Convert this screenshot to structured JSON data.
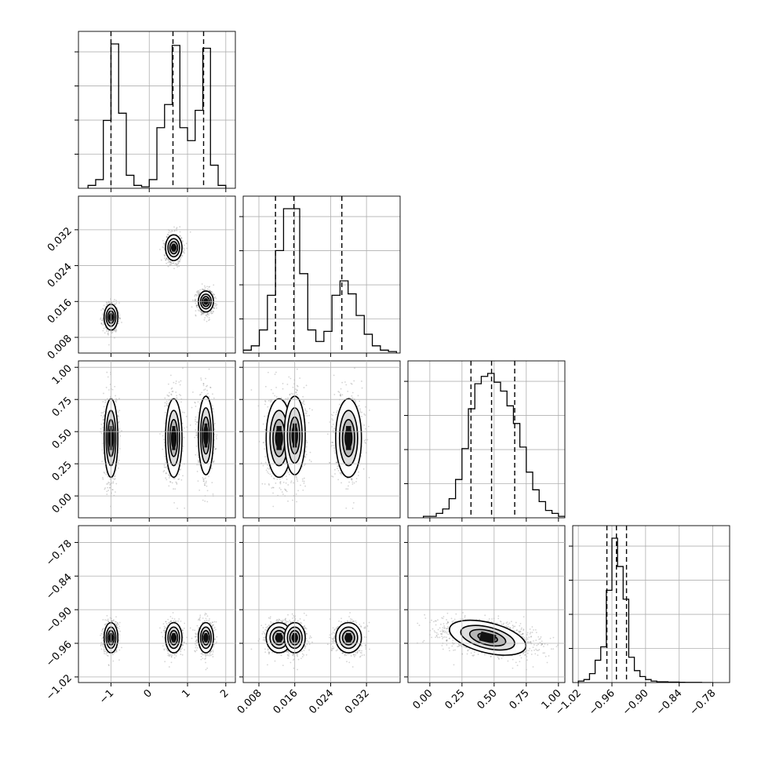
{
  "chart_data": {
    "type": "corner",
    "grid": true,
    "colors": {
      "line": "#000000",
      "grid": "#b0b0b0",
      "scatter": "#555555",
      "background": "#ffffff"
    },
    "parameters": [
      {
        "range": [
          -1.85,
          2.25
        ],
        "xticks": [
          -1,
          0,
          1,
          2
        ],
        "xtick_labels": [
          "−1",
          "0",
          "1",
          "2"
        ],
        "yticks": [],
        "ytick_labels": [],
        "quantiles": [
          -1.0,
          0.62,
          1.42
        ],
        "hist_edges": [
          -1.6,
          -1.4,
          -1.2,
          -1.0,
          -0.8,
          -0.6,
          -0.4,
          -0.2,
          0.0,
          0.2,
          0.4,
          0.6,
          0.8,
          1.0,
          1.2,
          1.4,
          1.6,
          1.8,
          2.0
        ],
        "hist_counts": [
          2,
          6,
          47,
          100,
          52,
          9,
          2,
          1,
          6,
          42,
          58,
          99,
          42,
          33,
          54,
          97,
          16,
          2
        ]
      },
      {
        "range": [
          0.0045,
          0.0395
        ],
        "xticks": [
          0.008,
          0.016,
          0.024,
          0.032
        ],
        "xtick_labels": [
          "0.008",
          "0.016",
          "0.024",
          "0.032"
        ],
        "yticks": [
          0.008,
          0.016,
          0.024,
          0.032
        ],
        "ytick_labels": [
          "0.008",
          "0.016",
          "0.024",
          "0.032"
        ],
        "quantiles": [
          0.0117,
          0.0158,
          0.0265
        ],
        "hist_edges": [
          0.0045,
          0.0063,
          0.0081,
          0.0099,
          0.0117,
          0.0135,
          0.0153,
          0.0171,
          0.0189,
          0.0207,
          0.0225,
          0.0243,
          0.0261,
          0.0279,
          0.0297,
          0.0315,
          0.0333,
          0.0351,
          0.0369,
          0.0387
        ],
        "hist_counts": [
          2,
          5,
          16,
          40,
          71,
          100,
          100,
          55,
          16,
          8,
          15,
          40,
          50,
          41,
          26,
          13,
          5,
          2,
          1
        ]
      },
      {
        "range": [
          -0.17,
          1.05
        ],
        "xticks": [
          0.0,
          0.25,
          0.5,
          0.75,
          1.0
        ],
        "xtick_labels": [
          "0.00",
          "0.25",
          "0.50",
          "0.75",
          "1.00"
        ],
        "yticks": [
          0.0,
          0.25,
          0.5,
          0.75,
          1.0
        ],
        "ytick_labels": [
          "0.00",
          "0.25",
          "0.50",
          "0.75",
          "1.00"
        ],
        "quantiles": [
          0.32,
          0.48,
          0.66
        ],
        "hist_edges": [
          -0.05,
          0.0,
          0.05,
          0.1,
          0.15,
          0.2,
          0.25,
          0.3,
          0.35,
          0.4,
          0.45,
          0.5,
          0.55,
          0.6,
          0.65,
          0.7,
          0.75,
          0.8,
          0.85,
          0.9,
          0.95,
          1.0,
          1.05
        ],
        "hist_counts": [
          1,
          1,
          3,
          6,
          13,
          26,
          47,
          74,
          91,
          96,
          98,
          92,
          86,
          76,
          64,
          48,
          31,
          19,
          11,
          5,
          3,
          1
        ]
      },
      {
        "range": [
          -1.03,
          -0.75
        ],
        "xticks": [
          -1.02,
          -0.96,
          -0.9,
          -0.84,
          -0.78
        ],
        "xtick_labels": [
          "−1.02",
          "−0.96",
          "−0.90",
          "−0.84",
          "−0.78"
        ],
        "yticks": [
          -1.02,
          -0.96,
          -0.9,
          -0.84,
          -0.78
        ],
        "ytick_labels": [
          "−1.02",
          "−0.96",
          "−0.90",
          "−0.84",
          "−0.78"
        ],
        "quantiles": [
          -0.969,
          -0.952,
          -0.934
        ],
        "hist_edges": [
          -1.02,
          -1.01,
          -1.0,
          -0.99,
          -0.98,
          -0.97,
          -0.96,
          -0.95,
          -0.94,
          -0.93,
          -0.92,
          -0.91,
          -0.9,
          -0.89,
          -0.88,
          -0.87,
          -0.86,
          -0.85,
          -0.84,
          -0.83,
          -0.82,
          -0.81,
          -0.8,
          -0.79,
          -0.78
        ],
        "hist_counts": [
          1,
          2,
          6,
          15,
          24,
          62,
          97,
          78,
          56,
          17,
          8,
          4,
          2,
          1,
          0.5,
          0.5,
          0.3,
          0.3,
          0.2,
          0.1,
          0.1,
          0.1,
          0,
          0
        ]
      }
    ],
    "clusters": [
      {
        "mean": [
          -1.0,
          0.0125,
          0.45,
          -0.95
        ],
        "sd": [
          0.1,
          0.0016,
          0.17,
          0.015
        ],
        "weight": 0.33
      },
      {
        "mean": [
          0.64,
          0.028,
          0.45,
          -0.95
        ],
        "sd": [
          0.12,
          0.0016,
          0.17,
          0.015
        ],
        "weight": 0.33
      },
      {
        "mean": [
          1.48,
          0.016,
          0.47,
          -0.95
        ],
        "sd": [
          0.11,
          0.0013,
          0.17,
          0.015
        ],
        "weight": 0.34
      }
    ],
    "correlation_param3_param4": -0.4
  }
}
